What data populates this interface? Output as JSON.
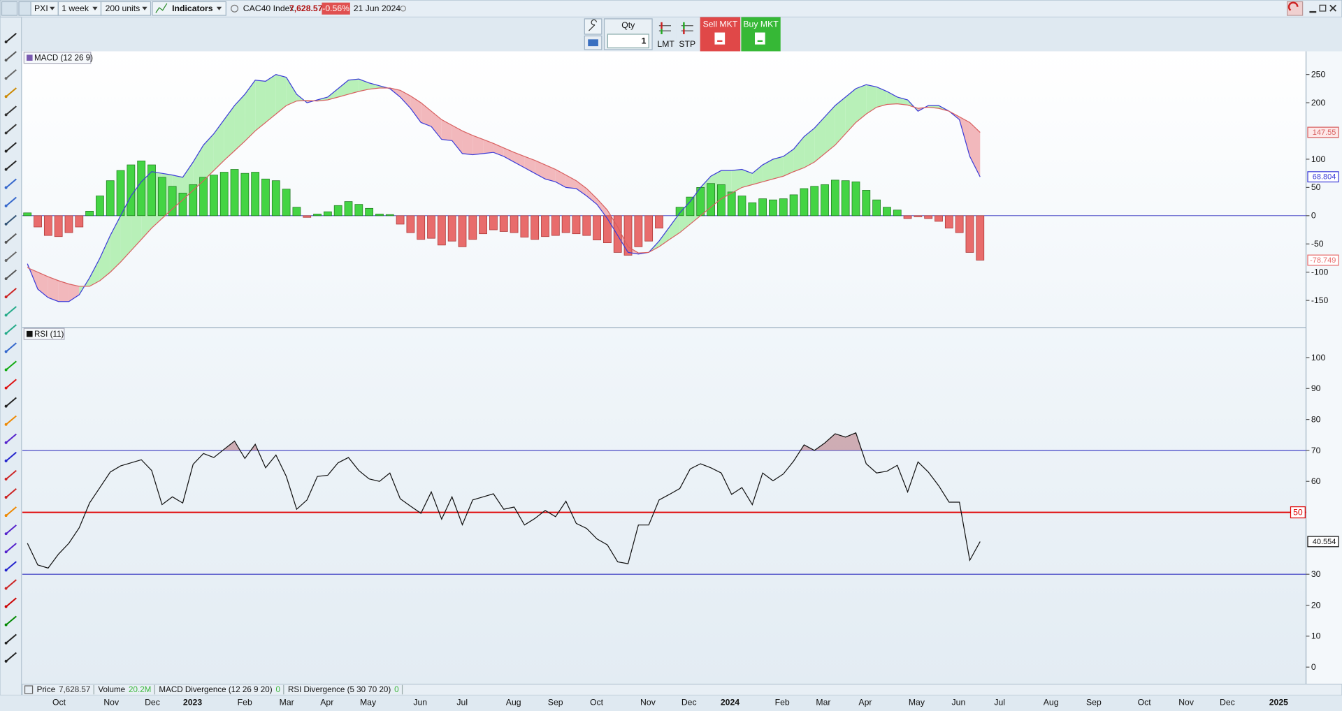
{
  "toolbar": {
    "symbol": "PXI",
    "interval": "1 week",
    "units": "200 units",
    "indicators": "Indicators",
    "instrument": "CAC40 Index",
    "price": "7,628.57",
    "change": "-0.56%",
    "date": "21 Jun 2024"
  },
  "order_ticket": {
    "qty_label": "Qty",
    "qty": "1",
    "limit": "LMT",
    "stop": "STP",
    "sell": "Sell MKT",
    "buy": "Buy MKT"
  },
  "chart_data": [
    {
      "type": "macd",
      "title": "MACD (12 26 9)",
      "ylim": [
        -198,
        291
      ],
      "yticks": [
        -150,
        -100,
        -50,
        0,
        50,
        100,
        200,
        250
      ],
      "zero_line": true,
      "series": [
        {
          "type": "line",
          "color": "#3c3cd8",
          "values": [
            -85,
            -130,
            -145,
            -152,
            -152,
            -140,
            -110,
            -75,
            -35,
            0,
            35,
            60,
            78,
            75,
            72,
            68,
            95,
            125,
            145,
            170,
            195,
            215,
            240,
            238,
            250,
            245,
            215,
            200,
            205,
            210,
            225,
            240,
            242,
            235,
            230,
            225,
            210,
            190,
            165,
            158,
            135,
            133,
            110,
            108,
            110,
            112,
            105,
            95,
            85,
            75,
            65,
            60,
            50,
            48,
            35,
            20,
            -5,
            -35,
            -65,
            -68,
            -65,
            -45,
            -20,
            5,
            25,
            50,
            70,
            80,
            80,
            82,
            75,
            90,
            100,
            105,
            118,
            140,
            155,
            175,
            195,
            210,
            225,
            232,
            228,
            220,
            210,
            205,
            185,
            195,
            195,
            185,
            170,
            105,
            68.804
          ]
        },
        {
          "type": "line",
          "color": "#d86060",
          "values": [
            -92,
            -100,
            -108,
            -115,
            -121,
            -125,
            -125,
            -115,
            -100,
            -82,
            -62,
            -42,
            -22,
            -5,
            12,
            28,
            45,
            62,
            80,
            98,
            115,
            132,
            150,
            165,
            180,
            195,
            203,
            204,
            203,
            205,
            210,
            215,
            220,
            224,
            226,
            226,
            222,
            212,
            200,
            185,
            170,
            160,
            150,
            142,
            135,
            128,
            120,
            112,
            105,
            98,
            90,
            82,
            72,
            62,
            48,
            30,
            10,
            -20,
            -55,
            -66,
            -65,
            -55,
            -42,
            -30,
            -15,
            0,
            15,
            30,
            40,
            50,
            55,
            60,
            65,
            70,
            78,
            85,
            95,
            110,
            125,
            145,
            165,
            180,
            192,
            197,
            198,
            196,
            190,
            192,
            190,
            185,
            175,
            165,
            147.55
          ]
        },
        {
          "type": "bar",
          "color": "#44d444",
          "negative_color": "#e86c6c",
          "values": [
            5,
            -20,
            -35,
            -37,
            -30,
            -20,
            8,
            35,
            62,
            80,
            90,
            97,
            90,
            68,
            52,
            40,
            55,
            68,
            72,
            77,
            82,
            75,
            77,
            65,
            62,
            47,
            15,
            -3,
            3,
            7,
            18,
            25,
            20,
            13,
            3,
            2,
            -15,
            -30,
            -42,
            -40,
            -52,
            -45,
            -55,
            -42,
            -32,
            -25,
            -28,
            -30,
            -38,
            -42,
            -37,
            -35,
            -30,
            -32,
            -35,
            -43,
            -48,
            -65,
            -70,
            -55,
            -45,
            -22,
            0,
            15,
            33,
            50,
            57,
            55,
            42,
            35,
            23,
            30,
            28,
            30,
            37,
            48,
            52,
            55,
            63,
            62,
            60,
            45,
            28,
            15,
            10,
            -5,
            -2,
            -5,
            -10,
            -22,
            -30,
            -65,
            -78.749
          ]
        }
      ],
      "cloud_colors": [
        "#b8f0b8",
        "#f2b8bc"
      ]
    },
    {
      "type": "line",
      "title": "RSI (11)",
      "ylim": [
        -5.5,
        109.7
      ],
      "yticks": [
        0,
        10,
        20,
        30,
        60,
        70,
        80,
        90,
        100
      ],
      "levels": [
        {
          "value": 70,
          "color": "#3030c0"
        },
        {
          "value": 30,
          "color": "#3030c0"
        },
        {
          "value": 50,
          "color": "#e00000"
        }
      ],
      "overbought_fill": "#c9a0a8",
      "series": [
        {
          "type": "line",
          "color": "#111111",
          "values": [
            40,
            33,
            32,
            36.5,
            40,
            45,
            53,
            58,
            63,
            65,
            66,
            67,
            63.5,
            52.5,
            55,
            53,
            65.5,
            69,
            67.7,
            70.4,
            73,
            67.4,
            72,
            64.4,
            68.5,
            61.6,
            51,
            54,
            61.6,
            62,
            66,
            67.7,
            63.5,
            60.8,
            60,
            62.7,
            54.4,
            52,
            49.7,
            56.6,
            47.8,
            55,
            46,
            54,
            55,
            56,
            51,
            51.7,
            45.9,
            48,
            50.6,
            48.6,
            53.6,
            46.4,
            44.8,
            41.4,
            39.5,
            34,
            33.4,
            45.9,
            45.9,
            54,
            55.8,
            57.7,
            64,
            65.7,
            64.4,
            62.7,
            55.8,
            58,
            52.5,
            62.7,
            60.2,
            62.4,
            66.6,
            71.8,
            70,
            72.4,
            75.4,
            74.3,
            75.7,
            65.7,
            62.7,
            63.3,
            65.2,
            56.6,
            66.3,
            63,
            58.6,
            53.3,
            53.3,
            34.5,
            40.554
          ]
        }
      ]
    }
  ],
  "status_bar": {
    "items": [
      {
        "label": "Price",
        "value": "7,628.57"
      },
      {
        "label": "Volume",
        "value": "20.2M"
      },
      {
        "label": "MACD Divergence (12 26 9 20)",
        "value": "0"
      },
      {
        "label": "RSI Divergence (5 30 70 20)",
        "value": "0"
      }
    ]
  },
  "time_axis": [
    "Oct",
    "Nov",
    "Dec",
    "2023",
    "Feb",
    "Mar",
    "Apr",
    "May",
    "Jun",
    "Jul",
    "Aug",
    "Sep",
    "Oct",
    "Nov",
    "Dec",
    "2024",
    "Feb",
    "Mar",
    "Apr",
    "May",
    "Jun",
    "Jul",
    "Aug",
    "Sep",
    "Oct",
    "Nov",
    "Dec",
    "2025"
  ]
}
